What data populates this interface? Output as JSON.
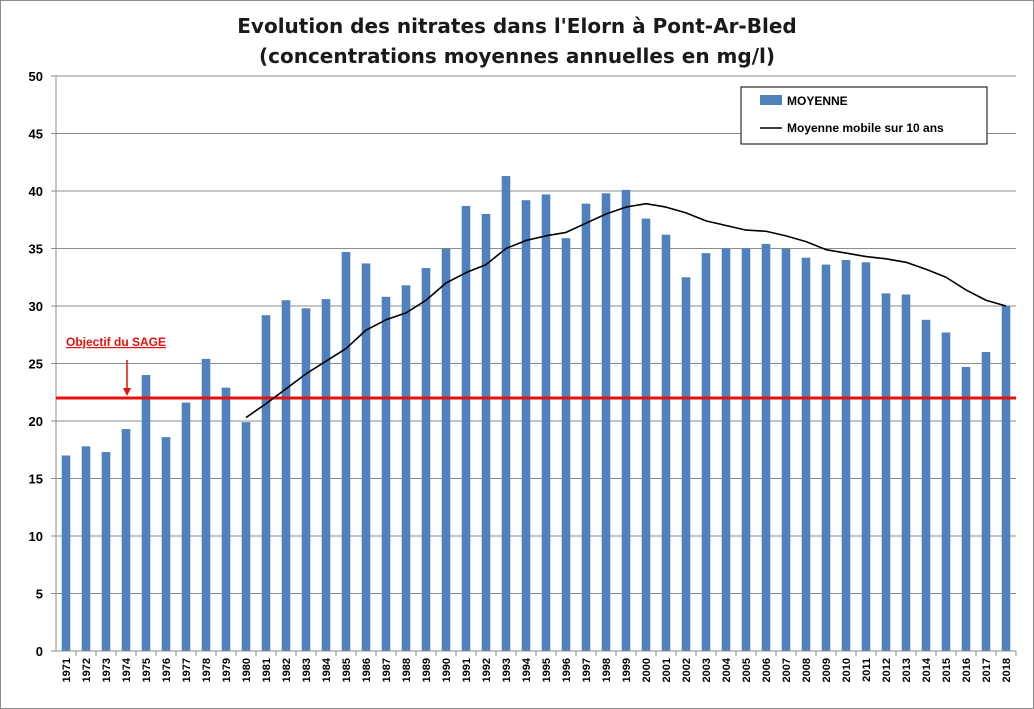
{
  "chart_data": {
    "type": "bar",
    "title": [
      "Evolution des nitrates dans l'Elorn à Pont-Ar-Bled",
      "(concentrations moyennes annuelles en mg/l)"
    ],
    "xlabel": "",
    "ylabel": "",
    "ylim": [
      0,
      50
    ],
    "yticks": [
      0,
      5,
      10,
      15,
      20,
      25,
      30,
      35,
      40,
      45,
      50
    ],
    "grid": true,
    "legend_position": "top-right",
    "categories": [
      "1971",
      "1972",
      "1973",
      "1974",
      "1975",
      "1976",
      "1977",
      "1978",
      "1979",
      "1980",
      "1981",
      "1982",
      "1983",
      "1984",
      "1985",
      "1986",
      "1987",
      "1988",
      "1989",
      "1990",
      "1991",
      "1992",
      "1993",
      "1994",
      "1995",
      "1996",
      "1997",
      "1998",
      "1999",
      "2000",
      "2001",
      "2002",
      "2003",
      "2004",
      "2005",
      "2006",
      "2007",
      "2008",
      "2009",
      "2010",
      "2011",
      "2012",
      "2013",
      "2014",
      "2015",
      "2016",
      "2017",
      "2018"
    ],
    "series": [
      {
        "name": "MOYENNE",
        "type": "bar",
        "color": "#4f81bd",
        "values": [
          17.0,
          17.8,
          17.3,
          19.3,
          24.0,
          18.6,
          21.6,
          25.4,
          22.9,
          19.9,
          29.2,
          30.5,
          29.8,
          30.6,
          34.7,
          33.7,
          30.8,
          31.8,
          33.3,
          35.0,
          38.7,
          38.0,
          41.3,
          39.2,
          39.7,
          35.9,
          38.9,
          39.8,
          40.1,
          37.6,
          36.2,
          32.5,
          34.6,
          35.0,
          35.0,
          35.4,
          35.0,
          34.2,
          33.6,
          34.0,
          33.8,
          31.1,
          31.0,
          28.8,
          27.7,
          24.7,
          26.0,
          30.0
        ]
      },
      {
        "name": "Moyenne mobile sur 10 ans",
        "type": "line",
        "color": "#000000",
        "values": [
          null,
          null,
          null,
          null,
          null,
          null,
          null,
          null,
          null,
          20.3,
          21.5,
          22.8,
          24.1,
          25.2,
          26.3,
          27.9,
          28.8,
          29.4,
          30.5,
          32.0,
          32.9,
          33.6,
          35.0,
          35.7,
          36.1,
          36.4,
          37.2,
          38.0,
          38.6,
          38.9,
          38.6,
          38.1,
          37.4,
          37.0,
          36.6,
          36.5,
          36.1,
          35.6,
          34.9,
          34.6,
          34.3,
          34.1,
          33.8,
          33.2,
          32.5,
          31.4,
          30.5,
          30.0
        ]
      }
    ],
    "reference_line": {
      "label": "Objectif du SAGE",
      "value": 22,
      "color": "#e3120b",
      "arrow_category": "1974"
    }
  }
}
